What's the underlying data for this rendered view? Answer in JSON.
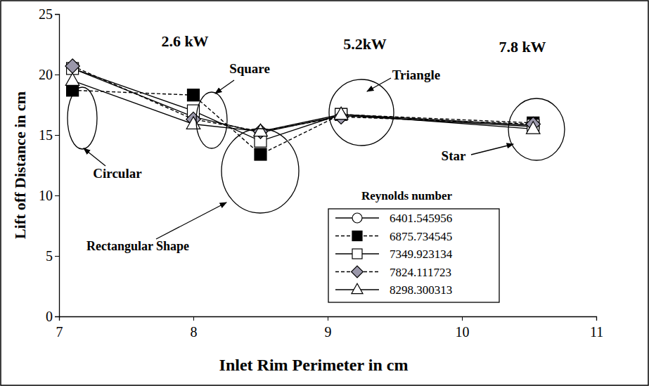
{
  "chart_data": {
    "type": "line",
    "x_label": "Inlet Rim Perimeter in cm",
    "y_label": "Lift off Distance in cm",
    "x": [
      7.1,
      8.0,
      8.5,
      9.1,
      10.53
    ],
    "xlim": [
      7,
      11
    ],
    "xticks": [
      7,
      8,
      9,
      10,
      11
    ],
    "ylim": [
      0,
      25
    ],
    "yticks": [
      0,
      5,
      10,
      15,
      20,
      25
    ],
    "grid": false,
    "legend": "lower right",
    "legend_title": "Reynolds number",
    "series": [
      {
        "name": "6401.545956",
        "color": "#000000",
        "marker": "circle-open",
        "line_style": "solid",
        "values": [
          20.5,
          16.5,
          15.2,
          16.6,
          15.7
        ]
      },
      {
        "name": "6875.734545",
        "color": "#000000",
        "marker": "square",
        "line_style": "dashed",
        "values": [
          18.7,
          18.3,
          13.4,
          16.7,
          16.0
        ]
      },
      {
        "name": "7349.923134",
        "color": "#000000",
        "marker": "square-open",
        "line_style": "solid",
        "values": [
          20.5,
          17.0,
          14.5,
          16.7,
          15.8
        ]
      },
      {
        "name": "7824.111723",
        "color": "#000000",
        "marker": "diamond",
        "line_style": "dashed",
        "values": [
          20.7,
          16.3,
          15.3,
          16.5,
          15.9
        ]
      },
      {
        "name": "8298.300313",
        "color": "#000000",
        "marker": "triangle-open",
        "line_style": "solid",
        "values": [
          19.5,
          15.9,
          15.3,
          16.7,
          15.5
        ]
      }
    ],
    "annotations": [
      "2.6 kW",
      "5.2kW",
      "7.8 kW",
      "Square",
      "Triangle",
      "Circular",
      "Rectangular Shape",
      "Star"
    ]
  }
}
